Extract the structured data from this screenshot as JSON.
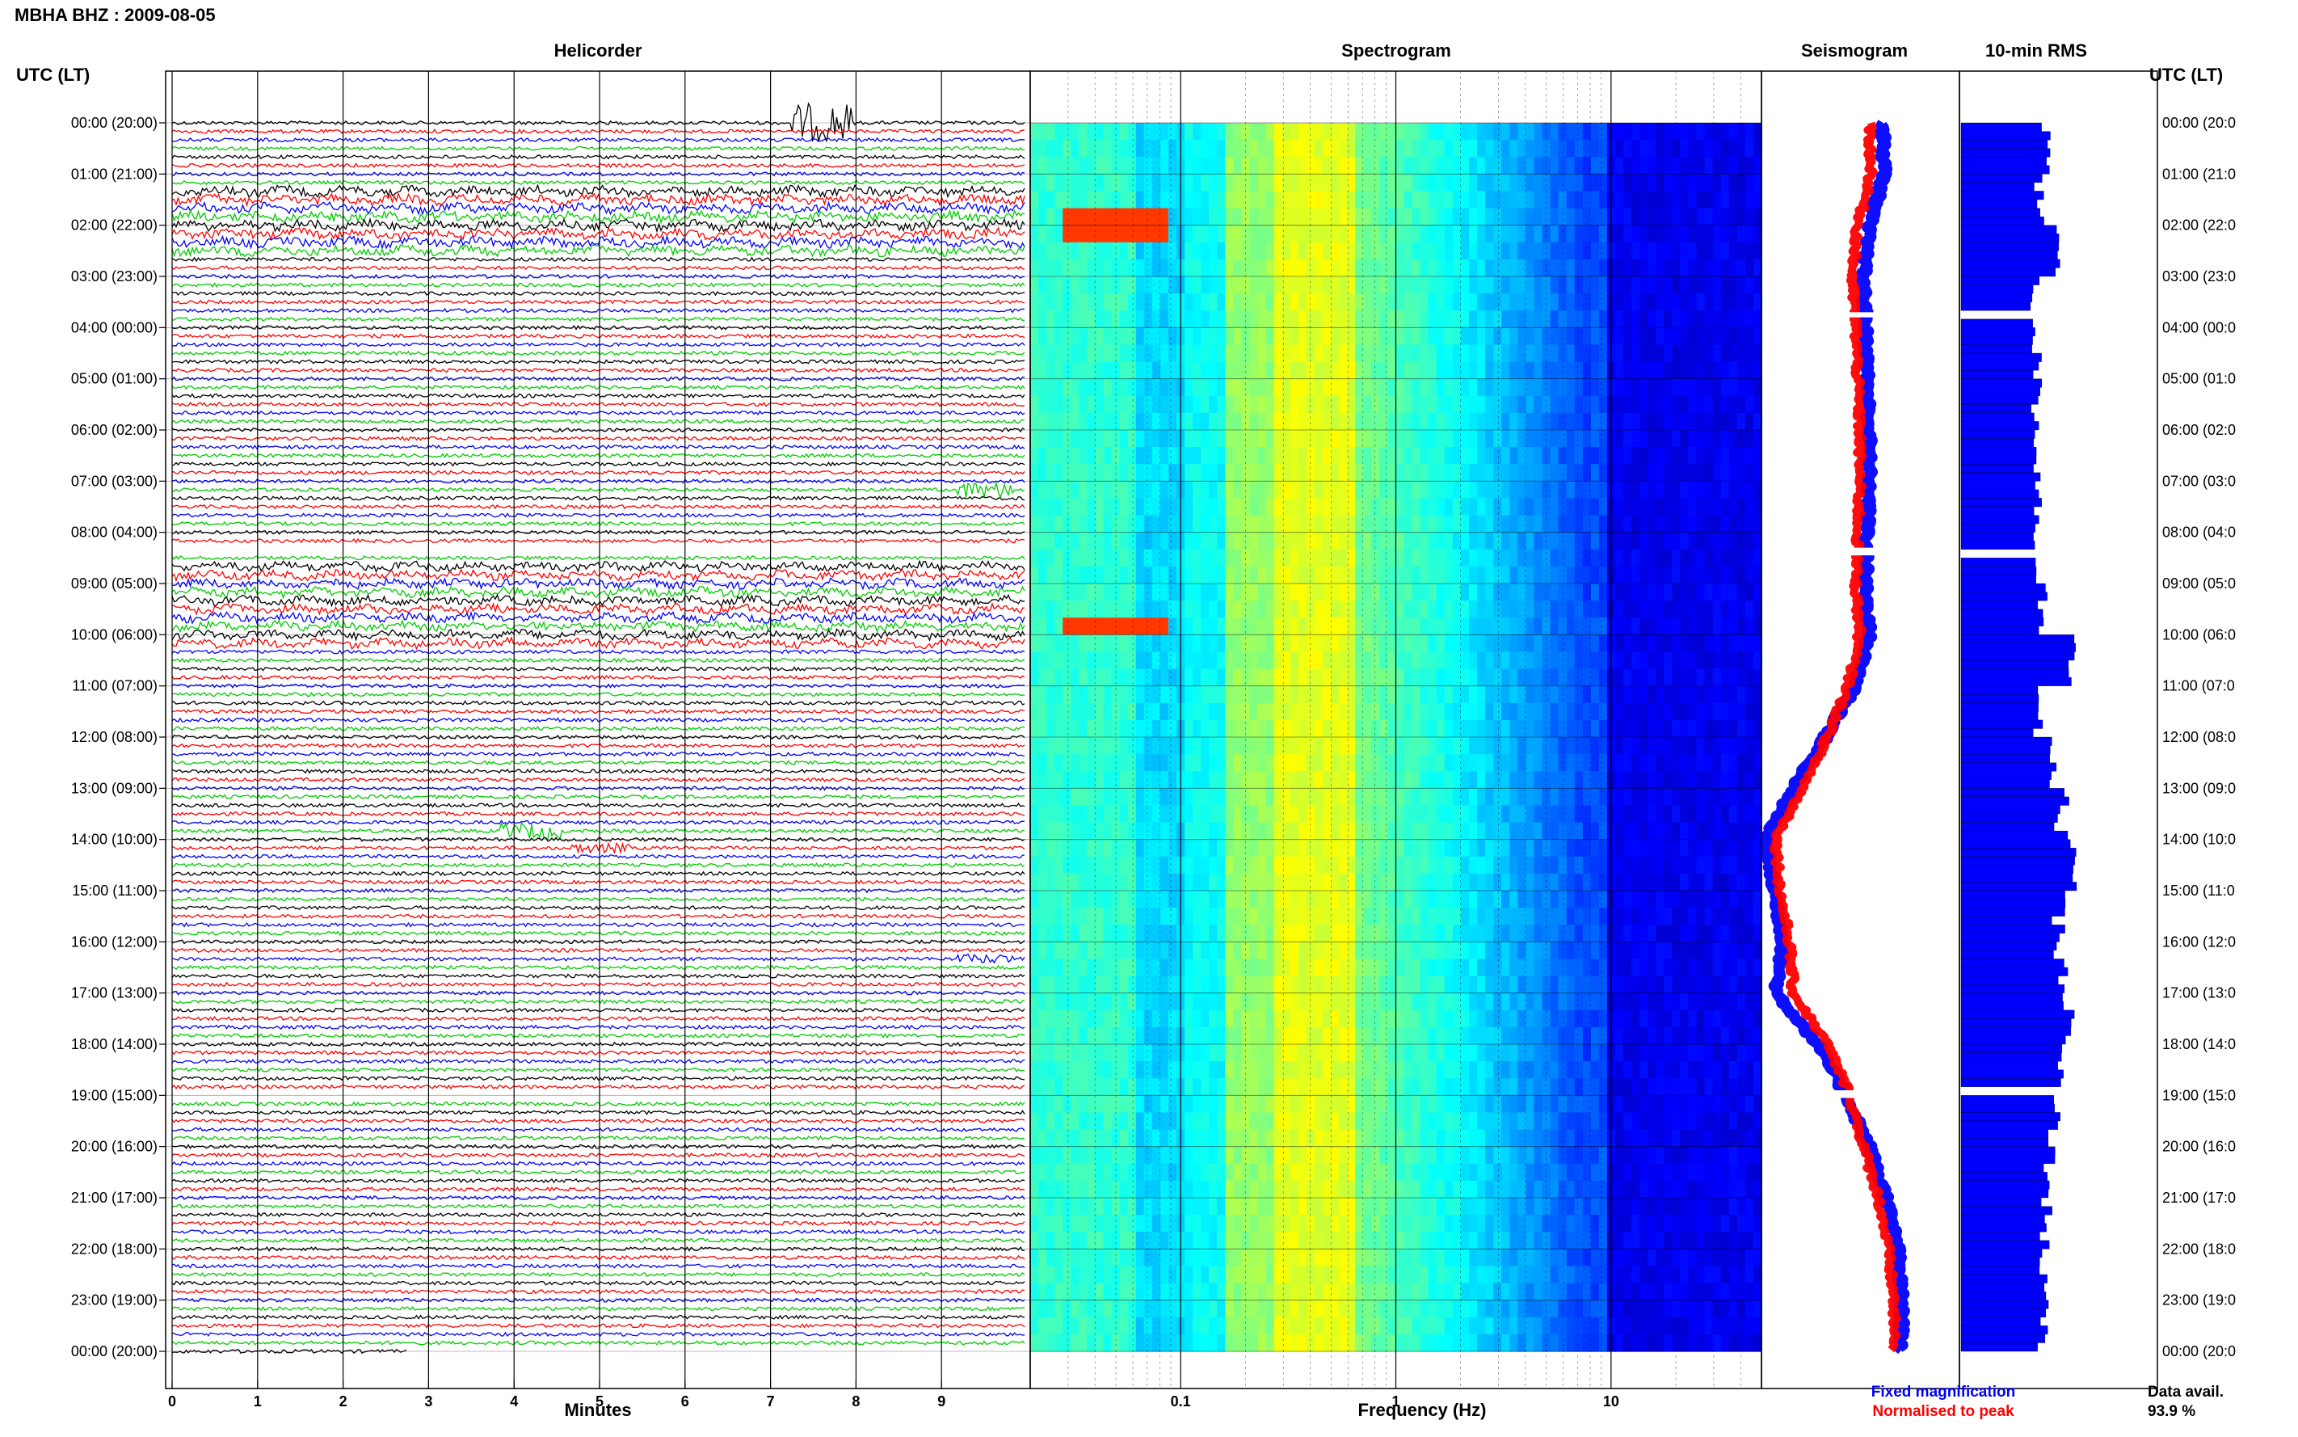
{
  "header": {
    "station_title": "MBHA BHZ : 2009-08-05",
    "utc_label_left": "UTC (LT)",
    "utc_label_right": "UTC (LT)"
  },
  "panels": {
    "helicorder": "Helicorder",
    "spectrogram": "Spectrogram",
    "seismogram": "Seismogram",
    "rms": "10-min RMS"
  },
  "time_labels_left": [
    "00:00 (20:00)",
    "01:00 (21:00)",
    "02:00 (22:00)",
    "03:00 (23:00)",
    "04:00 (00:00)",
    "05:00 (01:00)",
    "06:00 (02:00)",
    "07:00 (03:00)",
    "08:00 (04:00)",
    "09:00 (05:00)",
    "10:00 (06:00)",
    "11:00 (07:00)",
    "12:00 (08:00)",
    "13:00 (09:00)",
    "14:00 (10:00)",
    "15:00 (11:00)",
    "16:00 (12:00)",
    "17:00 (13:00)",
    "18:00 (14:00)",
    "19:00 (15:00)",
    "20:00 (16:00)",
    "21:00 (17:00)",
    "22:00 (18:00)",
    "23:00 (19:00)",
    "00:00 (20:00)"
  ],
  "time_labels_right": [
    "00:00 (20:0",
    "01:00 (21:0",
    "02:00 (22:0",
    "03:00 (23:0",
    "04:00 (00:0",
    "05:00 (01:0",
    "06:00 (02:0",
    "07:00 (03:0",
    "08:00 (04:0",
    "09:00 (05:0",
    "10:00 (06:0",
    "11:00 (07:0",
    "12:00 (08:0",
    "13:00 (09:0",
    "14:00 (10:0",
    "15:00 (11:0",
    "16:00 (12:0",
    "17:00 (13:0",
    "18:00 (14:0",
    "19:00 (15:0",
    "20:00 (16:0",
    "21:00 (17:0",
    "22:00 (18:0",
    "23:00 (19:0",
    "00:00 (20:0"
  ],
  "footer": {
    "minutes_label": "Minutes",
    "frequency_label": "Frequency (Hz)",
    "legend_fixed": "Fixed magnification",
    "legend_normalised": "Normalised to peak",
    "data_avail_label": "Data avail.",
    "data_avail_value": "93.9 %"
  },
  "colors": {
    "trace_cycle": [
      "#000000",
      "#ff0000",
      "#0000ff",
      "#00cc00"
    ],
    "fixed": "#0000ff",
    "normalised": "#ff0000",
    "rms_bar": "#0000ff"
  },
  "chart_data": [
    {
      "type": "line",
      "panel": "helicorder",
      "xlabel": "Minutes",
      "x_ticks": [
        0,
        1,
        2,
        3,
        4,
        5,
        6,
        7,
        8,
        9
      ],
      "xlim": [
        0,
        10
      ],
      "hours": 24,
      "lines_per_hour": 6,
      "data_gaps_hours": [
        [
          3.7,
          3.8
        ],
        [
          8.3,
          8.45
        ],
        [
          18.9,
          19.05
        ]
      ],
      "events": [
        {
          "hour": 0.0,
          "minute": 7.6,
          "amplitude": "large"
        },
        {
          "hour": 7.2,
          "minute": 9.5,
          "amplitude": "medium"
        },
        {
          "hour": 13.8,
          "minute": 4.2,
          "amplitude": "medium"
        },
        {
          "hour": 14.1,
          "minute": 5.0,
          "amplitude": "small"
        },
        {
          "hour": 16.3,
          "minute": 9.5,
          "amplitude": "small"
        }
      ]
    },
    {
      "type": "heatmap",
      "panel": "spectrogram",
      "xlabel": "Frequency (Hz)",
      "x_scale": "log",
      "xlim": [
        0.02,
        50
      ],
      "x_ticks": [
        0.1,
        1,
        10
      ],
      "x_tick_labels": [
        "0.1",
        "1",
        "10"
      ],
      "colormap": "jet",
      "hours": 24
    },
    {
      "type": "line",
      "panel": "seismogram",
      "series": [
        {
          "name": "Fixed magnification",
          "hours": [
            0,
            1,
            2,
            3,
            4,
            5,
            6,
            7,
            8,
            9,
            10,
            11,
            12,
            13,
            14,
            15,
            16,
            17,
            18,
            19,
            20,
            21,
            22,
            23,
            24
          ],
          "values": [
            0.62,
            0.63,
            0.55,
            0.52,
            0.53,
            0.54,
            0.55,
            0.55,
            0.54,
            0.53,
            0.55,
            0.48,
            0.32,
            0.15,
            0.0,
            0.05,
            0.1,
            0.06,
            0.28,
            0.43,
            0.55,
            0.64,
            0.7,
            0.72,
            0.72
          ]
        },
        {
          "name": "Normalised to peak",
          "hours": [
            0,
            1,
            2,
            3,
            4,
            5,
            6,
            7,
            8,
            9,
            10,
            11,
            12,
            13,
            14,
            15,
            16,
            17,
            18,
            19,
            20,
            21,
            22,
            23,
            24
          ],
          "values": [
            0.55,
            0.56,
            0.49,
            0.46,
            0.48,
            0.49,
            0.5,
            0.5,
            0.49,
            0.48,
            0.5,
            0.44,
            0.33,
            0.2,
            0.06,
            0.08,
            0.13,
            0.15,
            0.33,
            0.45,
            0.52,
            0.6,
            0.65,
            0.68,
            0.68
          ]
        }
      ],
      "legend": "bottom"
    },
    {
      "type": "bar",
      "panel": "rms",
      "title": "10-min RMS",
      "orientation": "horizontal",
      "hours": [
        0,
        1,
        2,
        3,
        4,
        5,
        6,
        7,
        8,
        9,
        10,
        11,
        12,
        13,
        14,
        15,
        16,
        17,
        18,
        19,
        20,
        21,
        22,
        23
      ],
      "values": [
        0.45,
        0.4,
        0.52,
        0.38,
        0.39,
        0.39,
        0.4,
        0.4,
        0.4,
        0.42,
        0.6,
        0.4,
        0.46,
        0.52,
        0.6,
        0.5,
        0.52,
        0.55,
        0.5,
        0.48,
        0.46,
        0.44,
        0.43,
        0.42
      ],
      "xlim": [
        0,
        1
      ]
    }
  ]
}
